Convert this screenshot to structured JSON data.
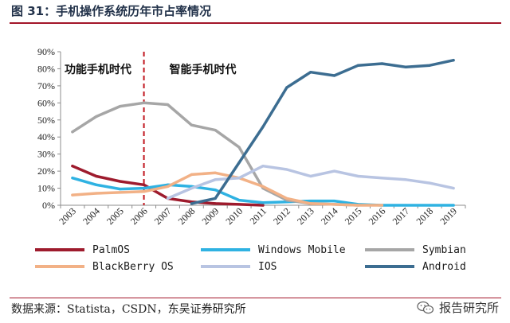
{
  "figure": {
    "title": "图 31：手机操作系统历年市占率情况",
    "source": "数据来源：Statista，CSDN，东吴证券研究所",
    "watermark": "报告研究所",
    "watermark_icon": "wechat-icon"
  },
  "chart_data": {
    "type": "line",
    "x": [
      "2003",
      "2004",
      "2005",
      "2006",
      "2007",
      "2008",
      "2009",
      "2010",
      "2011",
      "2012",
      "2013",
      "2014",
      "2015",
      "2016",
      "2017",
      "2018",
      "2019"
    ],
    "y_tick_labels": [
      "0%",
      "10%",
      "20%",
      "30%",
      "40%",
      "50%",
      "60%",
      "70%",
      "80%",
      "90%"
    ],
    "ylim": [
      0,
      90
    ],
    "grid": false,
    "legend_position": "bottom",
    "annotations": [
      {
        "text": "功能手机时代",
        "anchor_x": "2003"
      },
      {
        "text": "智能手机时代",
        "anchor_x": "2007"
      }
    ],
    "divider_at_x": "2006",
    "series": [
      {
        "name": "PalmOS",
        "color": "#9e1b2d",
        "values": [
          23,
          17,
          14,
          12,
          4,
          2,
          1,
          0.5,
          0,
          null,
          null,
          null,
          null,
          null,
          null,
          null,
          null
        ]
      },
      {
        "name": "Windows Mobile",
        "color": "#2fb2e2",
        "values": [
          16,
          12,
          9.5,
          10,
          12,
          11,
          9,
          3,
          1.5,
          2,
          2.5,
          2.5,
          0.5,
          0,
          0,
          0,
          0
        ]
      },
      {
        "name": "Symbian",
        "color": "#a6a6a6",
        "values": [
          43,
          52,
          58,
          60,
          59,
          47,
          44,
          34,
          10,
          3,
          1,
          0.5,
          0,
          null,
          null,
          null,
          null
        ]
      },
      {
        "name": "BlackBerry OS",
        "color": "#f2b186",
        "values": [
          6,
          7,
          7.5,
          8,
          11,
          18,
          19,
          16,
          11,
          4,
          1,
          0.5,
          0,
          0,
          null,
          null,
          null
        ]
      },
      {
        "name": "IOS",
        "color": "#b8c4e2",
        "values": [
          null,
          null,
          null,
          null,
          4,
          10,
          15,
          16,
          23,
          21,
          17,
          20,
          17,
          16,
          15,
          13,
          10
        ]
      },
      {
        "name": "Android",
        "color": "#3c6d91",
        "values": [
          null,
          null,
          null,
          null,
          null,
          1,
          4,
          25,
          46,
          69,
          78,
          76,
          82,
          83,
          81,
          82,
          85
        ]
      }
    ]
  }
}
